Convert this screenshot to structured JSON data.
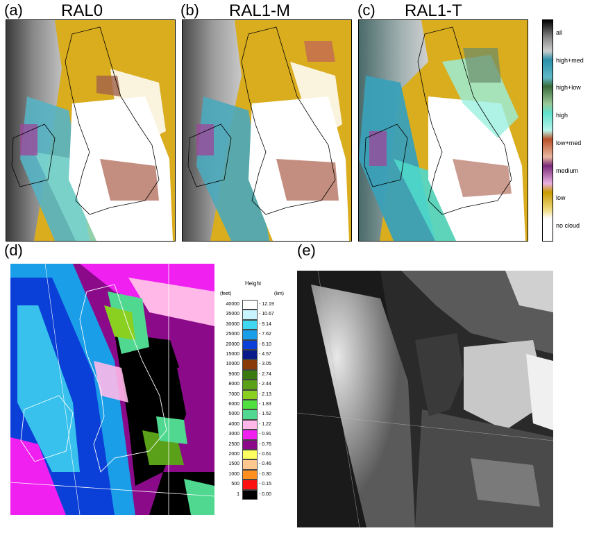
{
  "panels": {
    "a": {
      "label": "(a)",
      "title": "RAL0"
    },
    "b": {
      "label": "(b)",
      "title": "RAL1-M"
    },
    "c": {
      "label": "(c)",
      "title": "RAL1-T"
    },
    "d": {
      "label": "(d)"
    },
    "e": {
      "label": "(e)"
    }
  },
  "cloud_legend": {
    "items": [
      {
        "label": "all",
        "color": "#1a1a1a"
      },
      {
        "label": "high+med",
        "color": "#2a8fa8"
      },
      {
        "label": "high+low",
        "color": "#5b8a5a"
      },
      {
        "label": "high",
        "color": "#6fe0d0"
      },
      {
        "label": "low+med",
        "color": "#c8704a"
      },
      {
        "label": "medium",
        "color": "#9a4a9a"
      },
      {
        "label": "low",
        "color": "#d4a800"
      },
      {
        "label": "no cloud",
        "color": "#ffffff"
      }
    ]
  },
  "height_legend": {
    "title": "Height",
    "unit_feet": "(feet)",
    "unit_km": "(km)",
    "rows": [
      {
        "feet": "40000",
        "km": "12.19",
        "color": "#ffffff"
      },
      {
        "feet": "35000",
        "km": "10.67",
        "color": "#c8f4ff"
      },
      {
        "feet": "30000",
        "km": "9.14",
        "color": "#40d8f0"
      },
      {
        "feet": "25000",
        "km": "7.62",
        "color": "#1a9ee8"
      },
      {
        "feet": "20000",
        "km": "6.10",
        "color": "#0a3fd8"
      },
      {
        "feet": "15000",
        "km": "4.57",
        "color": "#0a1a8a"
      },
      {
        "feet": "10000",
        "km": "3.05",
        "color": "#8a3a08"
      },
      {
        "feet": "9000",
        "km": "2.74",
        "color": "#3a7a10"
      },
      {
        "feet": "8000",
        "km": "2.44",
        "color": "#5aa018"
      },
      {
        "feet": "7000",
        "km": "2.13",
        "color": "#8ad020"
      },
      {
        "feet": "6000",
        "km": "1.83",
        "color": "#50e040"
      },
      {
        "feet": "5000",
        "km": "1.52",
        "color": "#50d890"
      },
      {
        "feet": "4000",
        "km": "1.22",
        "color": "#ffb8e8"
      },
      {
        "feet": "3000",
        "km": "0.91",
        "color": "#f020f0"
      },
      {
        "feet": "2500",
        "km": "0.76",
        "color": "#8a0a8a"
      },
      {
        "feet": "2000",
        "km": "0.61",
        "color": "#ffff60"
      },
      {
        "feet": "1500",
        "km": "0.46",
        "color": "#ffc890"
      },
      {
        "feet": "1000",
        "km": "0.30",
        "color": "#ff9020"
      },
      {
        "feet": "500",
        "km": "0.15",
        "color": "#ff1010"
      },
      {
        "feet": "1",
        "km": "0.00",
        "color": "#000000"
      }
    ]
  }
}
